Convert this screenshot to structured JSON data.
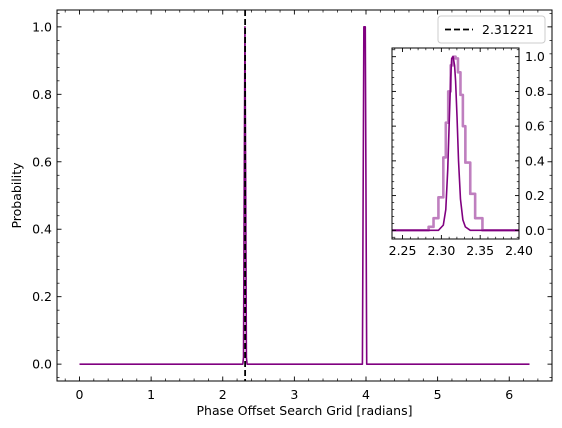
{
  "chart_data": [
    {
      "type": "line",
      "title": "",
      "xlabel": "Phase Offset Search Grid [radians]",
      "ylabel": "Probability",
      "xlim": [
        -0.3142,
        6.597
      ],
      "ylim": [
        -0.05,
        1.05
      ],
      "x_ticks": [
        0,
        1,
        2,
        3,
        4,
        5,
        6
      ],
      "x_tick_labels": [
        "0",
        "1",
        "2",
        "3",
        "4",
        "5",
        "6"
      ],
      "y_ticks": [
        0.0,
        0.2,
        0.4,
        0.6,
        0.8,
        1.0
      ],
      "y_tick_labels": [
        "0.0",
        "0.2",
        "0.4",
        "0.6",
        "0.8",
        "1.0"
      ],
      "grid": false,
      "legend": {
        "placement": "top-right",
        "entries": [
          {
            "label": "2.31221",
            "style": "dashed",
            "color": "#000000"
          }
        ]
      },
      "vline": {
        "x": 2.31221,
        "color": "#000000",
        "style": "dashed"
      },
      "series": [
        {
          "color": "#800080",
          "x": [
            0.0,
            2.28,
            2.29,
            2.3,
            2.31,
            2.32,
            2.33,
            2.34,
            2.35,
            3.93,
            3.95,
            3.97,
            3.99,
            4.01,
            4.03,
            6.283
          ],
          "y": [
            0.0,
            0.0,
            0.02,
            0.55,
            1.0,
            0.55,
            0.02,
            0.0,
            0.0,
            0.0,
            0.0,
            1.0,
            1.0,
            0.0,
            0.0,
            0.0
          ]
        }
      ]
    },
    {
      "type": "line",
      "title": "",
      "xlabel": "",
      "ylabel": "",
      "placement": "inset, upper-right",
      "xlim": [
        2.2364,
        2.4
      ],
      "ylim": [
        -0.05,
        1.05
      ],
      "x_ticks": [
        2.25,
        2.3,
        2.35,
        2.4
      ],
      "x_tick_labels": [
        "2.25",
        "2.30",
        "2.35",
        "2.40"
      ],
      "y_ticks": [
        0.0,
        0.2,
        0.4,
        0.6,
        0.8,
        1.0
      ],
      "y_tick_labels": [
        "0.0",
        "0.2",
        "0.4",
        "0.6",
        "0.8",
        "1.0"
      ],
      "y_axis_side": "right",
      "series": [
        {
          "color": "#800080",
          "opacity": 0.5,
          "step": true,
          "x": [
            2.2364,
            2.2836,
            2.2899,
            2.2962,
            2.3025,
            2.3057,
            2.3088,
            2.312,
            2.3151,
            2.3183,
            2.3214,
            2.3246,
            2.3277,
            2.3309,
            2.3372,
            2.3435,
            2.3529,
            2.4
          ],
          "y": [
            0.0,
            0.02,
            0.07,
            0.19,
            0.42,
            0.62,
            0.8,
            0.95,
            1.0,
            0.99,
            0.91,
            0.78,
            0.6,
            0.39,
            0.21,
            0.07,
            0.0,
            0.0
          ]
        },
        {
          "color": "#800080",
          "opacity": 1.0,
          "step": false,
          "x": [
            2.2364,
            2.2962,
            2.3025,
            2.3057,
            2.3082,
            2.3101,
            2.312,
            2.3133,
            2.3151,
            2.317,
            2.3183,
            2.3202,
            2.3221,
            2.3246,
            2.3277,
            2.3309,
            2.3372,
            2.4
          ],
          "y": [
            0.0,
            0.0,
            0.03,
            0.12,
            0.35,
            0.62,
            0.88,
            0.99,
            1.0,
            0.95,
            0.86,
            0.65,
            0.4,
            0.18,
            0.06,
            0.02,
            0.0,
            0.0
          ]
        }
      ]
    }
  ]
}
